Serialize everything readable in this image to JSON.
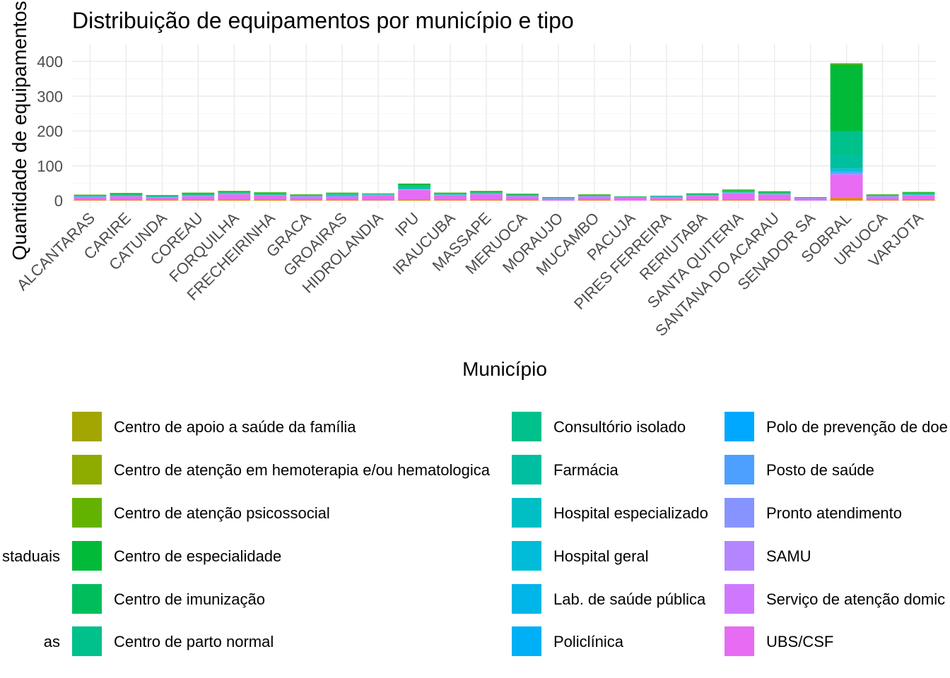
{
  "chart_data": {
    "type": "bar",
    "stacked": true,
    "title": "Distribuição de equipamentos por município e tipo",
    "xlabel": "Município",
    "ylabel": "Quantidade de equipamentos",
    "ylim": [
      0,
      450
    ],
    "yticks": [
      0,
      100,
      200,
      300,
      400
    ],
    "grid": true,
    "legend_position": "bottom",
    "categories": [
      "ALCANTARAS",
      "CARIRE",
      "CATUNDA",
      "COREAU",
      "FORQUILHA",
      "FRECHEIRINHA",
      "GRACA",
      "GROAIRAS",
      "HIDROLANDIA",
      "IPU",
      "IRAUCUBA",
      "MASSAPE",
      "MERUOCA",
      "MORAUJO",
      "MUCAMBO",
      "PACUJA",
      "PIRES FERREIRA",
      "RERIUTABA",
      "SANTA QUITERIA",
      "SANTANA DO ACARAU",
      "SENADOR SA",
      "SOBRAL",
      "URUOCA",
      "VARJOTA"
    ],
    "legend_left_partial": [
      "staduais",
      "as"
    ],
    "series": [
      {
        "name": "Centro de apoio a saúde da família",
        "color": "#A3A500",
        "values": [
          0,
          0,
          0,
          0,
          0,
          0,
          0,
          0,
          0,
          0,
          0,
          0,
          0,
          0,
          0,
          0,
          0,
          0,
          0,
          0,
          0,
          0,
          0,
          0
        ]
      },
      {
        "name": "Centro de atenção em hemoterapia e/ou hematologica",
        "color": "#8EAB00",
        "values": [
          0,
          0,
          0,
          0,
          0,
          0,
          0,
          0,
          0,
          0,
          0,
          0,
          0,
          0,
          0,
          0,
          0,
          0,
          0,
          0,
          0,
          1,
          0,
          0
        ]
      },
      {
        "name": "Centro de atenção psicossocial",
        "color": "#64B200",
        "values": [
          1,
          1,
          1,
          1,
          1,
          1,
          1,
          1,
          1,
          1,
          1,
          1,
          1,
          0,
          1,
          0,
          0,
          1,
          2,
          1,
          0,
          3,
          1,
          1
        ]
      },
      {
        "name": "Centro de especialidade",
        "color": "#00BA38",
        "values": [
          2,
          3,
          2,
          3,
          3,
          3,
          2,
          2,
          1,
          5,
          2,
          3,
          2,
          1,
          2,
          1,
          1,
          2,
          3,
          3,
          1,
          190,
          2,
          3
        ]
      },
      {
        "name": "Centro de imunização",
        "color": "#00BD5C",
        "values": [
          0,
          1,
          0,
          1,
          1,
          1,
          0,
          1,
          0,
          1,
          0,
          1,
          0,
          0,
          0,
          0,
          0,
          0,
          1,
          1,
          0,
          2,
          0,
          1
        ]
      },
      {
        "name": "Centro de parto normal",
        "color": "#00C08B",
        "values": [
          0,
          0,
          0,
          0,
          0,
          0,
          0,
          0,
          0,
          0,
          0,
          0,
          0,
          0,
          0,
          0,
          0,
          0,
          0,
          0,
          0,
          1,
          0,
          0
        ]
      },
      {
        "name": "Consultório isolado",
        "color": "#00C08B",
        "values": [
          1,
          2,
          1,
          2,
          2,
          2,
          1,
          2,
          1,
          5,
          2,
          2,
          2,
          1,
          1,
          1,
          1,
          2,
          2,
          2,
          1,
          70,
          1,
          2
        ]
      },
      {
        "name": "Farmácia",
        "color": "#00BFA0",
        "values": [
          1,
          1,
          1,
          1,
          1,
          1,
          1,
          1,
          1,
          3,
          1,
          1,
          1,
          1,
          1,
          0,
          0,
          1,
          1,
          1,
          0,
          35,
          1,
          1
        ]
      },
      {
        "name": "Hospital especializado",
        "color": "#00BFC4",
        "values": [
          0,
          0,
          0,
          0,
          0,
          0,
          0,
          0,
          0,
          0,
          0,
          0,
          0,
          0,
          0,
          0,
          0,
          0,
          0,
          0,
          0,
          4,
          0,
          0
        ]
      },
      {
        "name": "Hospital geral",
        "color": "#00BCD8",
        "values": [
          1,
          1,
          1,
          1,
          1,
          1,
          1,
          1,
          1,
          2,
          1,
          1,
          1,
          1,
          1,
          1,
          1,
          1,
          1,
          1,
          1,
          5,
          1,
          1
        ]
      },
      {
        "name": "Lab. de saúde pública",
        "color": "#00B5E8",
        "values": [
          0,
          0,
          0,
          0,
          0,
          0,
          0,
          0,
          0,
          0,
          0,
          0,
          0,
          0,
          0,
          0,
          0,
          0,
          0,
          0,
          0,
          1,
          0,
          0
        ]
      },
      {
        "name": "Policlínica",
        "color": "#00B0F6",
        "values": [
          0,
          0,
          0,
          0,
          0,
          0,
          0,
          0,
          0,
          0,
          0,
          0,
          0,
          0,
          0,
          0,
          0,
          0,
          0,
          0,
          0,
          1,
          0,
          0
        ]
      },
      {
        "name": "Polo de prevenção de doe",
        "color": "#00A9FF",
        "values": [
          0,
          0,
          0,
          0,
          0,
          0,
          0,
          0,
          0,
          0,
          0,
          0,
          0,
          0,
          0,
          0,
          0,
          0,
          0,
          0,
          0,
          1,
          0,
          0
        ]
      },
      {
        "name": "Posto de saúde",
        "color": "#4DA0FF",
        "values": [
          0,
          0,
          0,
          1,
          0,
          0,
          0,
          3,
          0,
          0,
          0,
          0,
          0,
          0,
          0,
          0,
          2,
          0,
          0,
          0,
          0,
          3,
          0,
          0
        ]
      },
      {
        "name": "Pronto atendimento",
        "color": "#8794FF",
        "values": [
          0,
          0,
          0,
          0,
          0,
          0,
          0,
          0,
          0,
          0,
          0,
          0,
          0,
          0,
          0,
          0,
          0,
          0,
          0,
          0,
          0,
          1,
          0,
          0
        ]
      },
      {
        "name": "SAMU",
        "color": "#B385FF",
        "values": [
          1,
          1,
          1,
          1,
          1,
          1,
          1,
          1,
          1,
          1,
          1,
          1,
          1,
          1,
          1,
          1,
          1,
          1,
          1,
          1,
          1,
          3,
          1,
          1
        ]
      },
      {
        "name": "Serviço de atenção domic",
        "color": "#CF78FF",
        "values": [
          0,
          0,
          0,
          0,
          0,
          0,
          0,
          0,
          0,
          1,
          0,
          0,
          0,
          0,
          0,
          0,
          0,
          0,
          0,
          0,
          0,
          2,
          0,
          0
        ]
      },
      {
        "name": "UBS/CSF",
        "color": "#E76BF3",
        "values": [
          8,
          10,
          7,
          10,
          14,
          11,
          9,
          9,
          14,
          27,
          13,
          16,
          10,
          5,
          9,
          8,
          6,
          11,
          19,
          15,
          6,
          62,
          9,
          13
        ]
      },
      {
        "name": "",
        "color": "#F8766D",
        "values": [
          1,
          1,
          1,
          1,
          2,
          1,
          1,
          1,
          0,
          1,
          1,
          1,
          1,
          0,
          1,
          0,
          1,
          1,
          1,
          1,
          0,
          3,
          1,
          1
        ]
      },
      {
        "name": "",
        "color": "#E58700",
        "values": [
          1,
          1,
          1,
          1,
          2,
          2,
          1,
          1,
          1,
          2,
          1,
          1,
          1,
          0,
          1,
          0,
          1,
          1,
          1,
          1,
          0,
          7,
          1,
          1
        ]
      }
    ]
  }
}
